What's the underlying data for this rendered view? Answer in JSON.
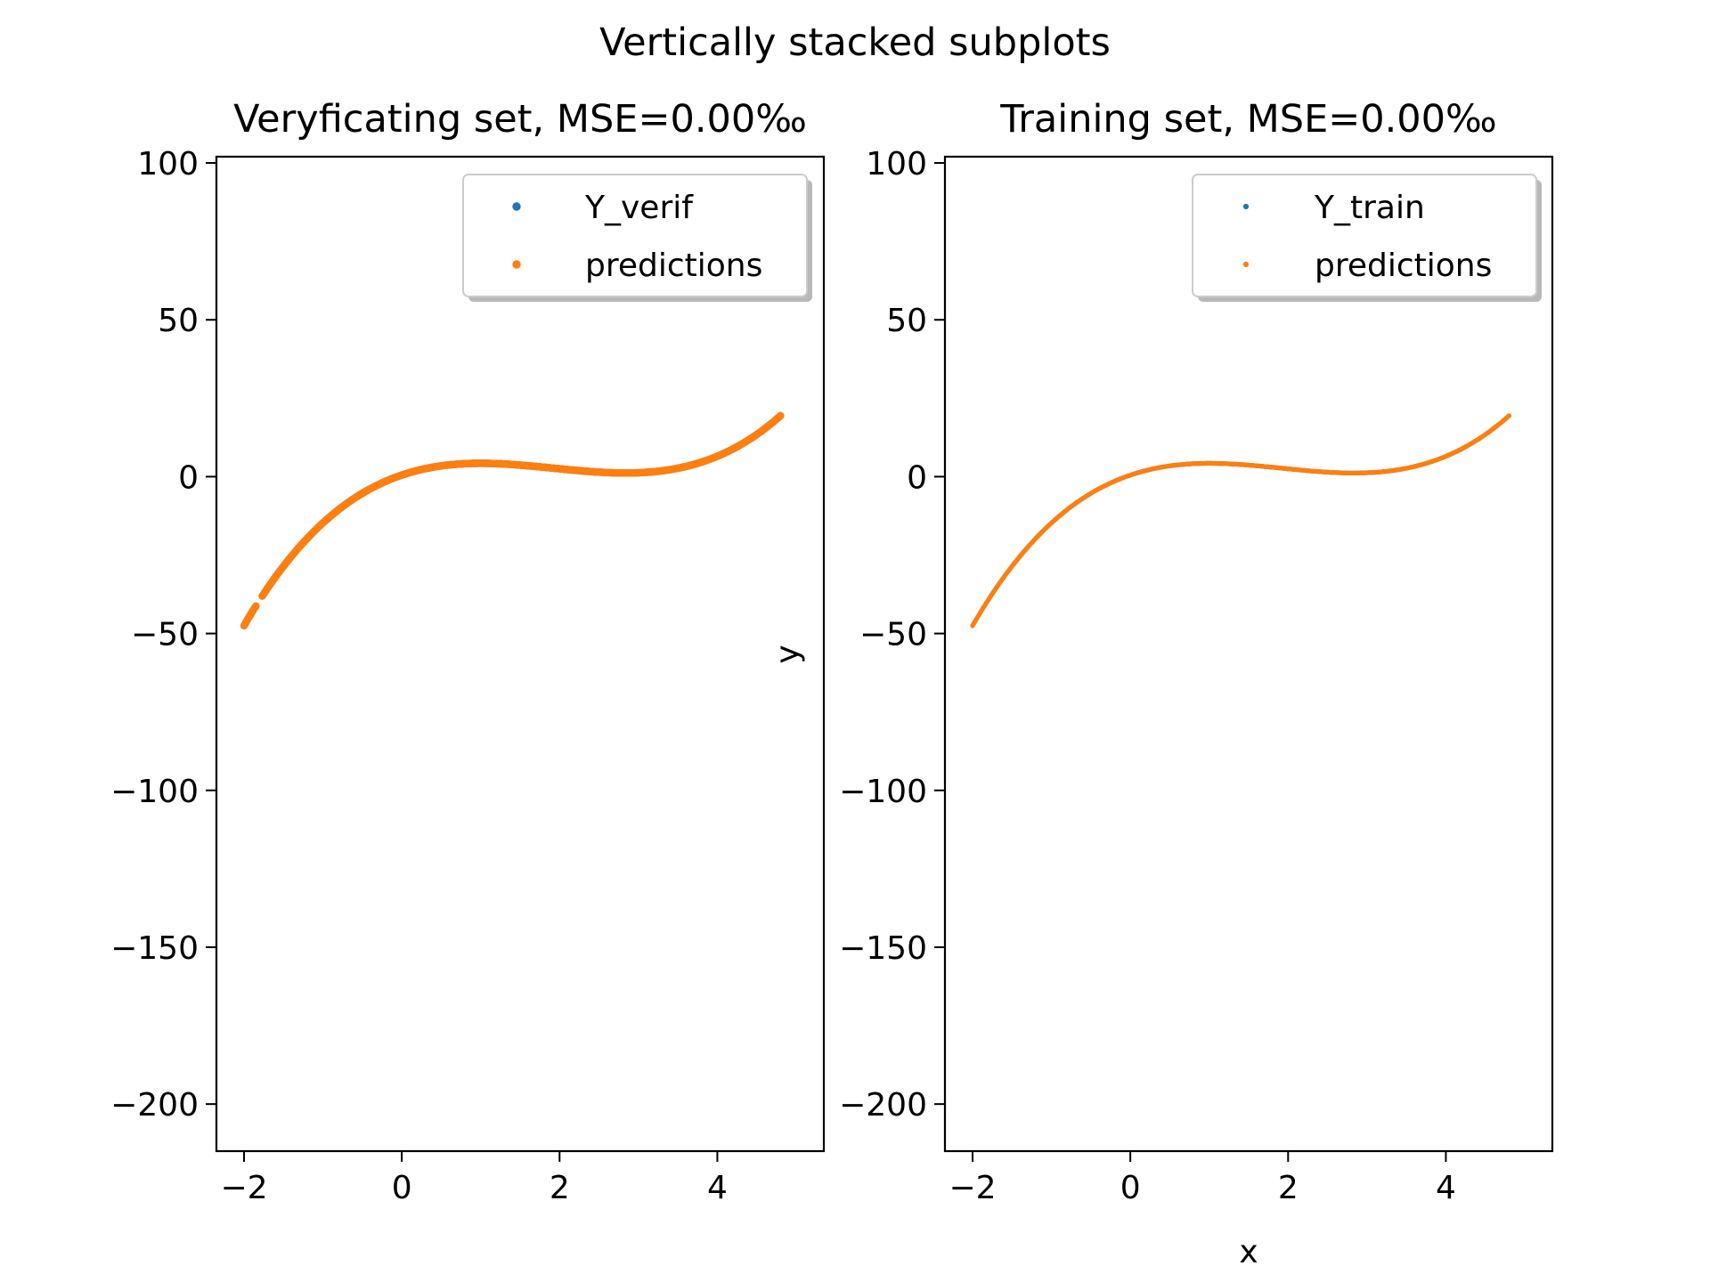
{
  "figure": {
    "suptitle": "Vertically stacked subplots"
  },
  "colors": {
    "series_1": "#1f77b4",
    "series_2": "#ff7f0e"
  },
  "chart_data": [
    {
      "type": "scatter",
      "title": "Veryficating set, MSE=0.00‰",
      "xlabel": "",
      "ylabel": "",
      "xlim": [
        -2.35,
        5.35
      ],
      "ylim": [
        -215,
        102
      ],
      "xticks": [
        -2,
        0,
        2,
        4
      ],
      "xtick_labels": [
        "−2",
        "0",
        "2",
        "4"
      ],
      "yticks": [
        100,
        50,
        0,
        -50,
        -100,
        -150,
        -200
      ],
      "ytick_labels": [
        "100",
        "50",
        "0",
        "−50",
        "−100",
        "−150",
        "−200"
      ],
      "grid": false,
      "legend_position": "top-right",
      "curve": "y = x^3 - 5.75x^2 + 8.5x + 0.5",
      "x_range": [
        -2.0,
        4.8
      ],
      "gaps": [
        [
          -1.85,
          -1.78
        ]
      ],
      "series": [
        {
          "name": "Y_verif",
          "color": "#1f77b4"
        },
        {
          "name": "predictions",
          "color": "#ff7f0e"
        }
      ]
    },
    {
      "type": "scatter",
      "title": "Training set, MSE=0.00‰",
      "xlabel": "x",
      "ylabel": "y",
      "xlim": [
        -2.35,
        5.35
      ],
      "ylim": [
        -215,
        102
      ],
      "xticks": [
        -2,
        0,
        2,
        4
      ],
      "xtick_labels": [
        "−2",
        "0",
        "2",
        "4"
      ],
      "yticks": [
        100,
        50,
        0,
        -50,
        -100,
        -150,
        -200
      ],
      "ytick_labels": [
        "100",
        "50",
        "0",
        "−50",
        "−100",
        "−150",
        "−200"
      ],
      "grid": false,
      "legend_position": "top-right",
      "curve": "y = x^3 - 5.75x^2 + 8.5x + 0.5",
      "x_range": [
        -2.0,
        4.8
      ],
      "gaps": [],
      "series": [
        {
          "name": "Y_train",
          "color": "#1f77b4"
        },
        {
          "name": "predictions",
          "color": "#ff7f0e"
        }
      ]
    }
  ]
}
